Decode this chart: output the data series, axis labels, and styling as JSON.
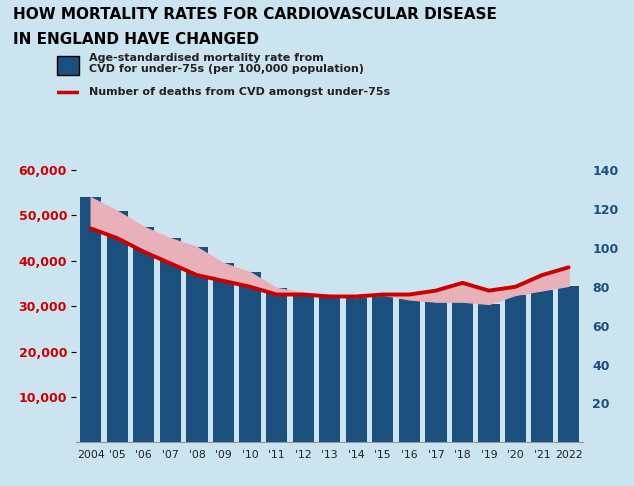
{
  "years": [
    2004,
    2005,
    2006,
    2007,
    2008,
    2009,
    2010,
    2011,
    2012,
    2013,
    2014,
    2015,
    2016,
    2017,
    2018,
    2019,
    2020,
    2021,
    2022
  ],
  "year_labels": [
    "2004",
    "'05",
    "'06",
    "'07",
    "'08",
    "'09",
    "'10",
    "'11",
    "'12",
    "'13",
    "'14",
    "'15",
    "'16",
    "'17",
    "'18",
    "'19",
    "'20",
    "'21",
    "2022"
  ],
  "bar_values": [
    54000,
    51000,
    47500,
    45000,
    43000,
    39500,
    37500,
    34000,
    33000,
    32500,
    32000,
    32500,
    31500,
    31000,
    31000,
    30500,
    32500,
    33500,
    34500
  ],
  "line_values": [
    110,
    105,
    98,
    92,
    86,
    83,
    80,
    76,
    76,
    75,
    75,
    76,
    76,
    78,
    82,
    78,
    80,
    86,
    90
  ],
  "bar_color": "#1b4f7e",
  "line_color": "#cc0000",
  "fill_color": "#e8b0b8",
  "background_color": "#cce3f0",
  "title_line1": "HOW MORTALITY RATES FOR CARDIOVASCULAR DISEASE",
  "title_line2": "IN ENGLAND HAVE CHANGED",
  "legend1_label_line1": "Age-standardised mortality rate from",
  "legend1_label_line2": "CVD for under-75s (per 100,000 population)",
  "legend2_label": "Number of deaths from CVD amongst under-75s",
  "left_ylim": [
    0,
    60000
  ],
  "right_ylim": [
    0,
    140
  ],
  "left_ytick_vals": [
    10000,
    20000,
    30000,
    40000,
    50000,
    60000
  ],
  "right_ytick_vals": [
    20,
    40,
    60,
    80,
    100,
    120,
    140
  ],
  "left_ytick_labels": [
    "10,000",
    "20,000",
    "30,000",
    "40,000",
    "50,000",
    "60,000"
  ],
  "right_ytick_labels": [
    "20",
    "40",
    "60",
    "80",
    "100",
    "120",
    "140"
  ]
}
